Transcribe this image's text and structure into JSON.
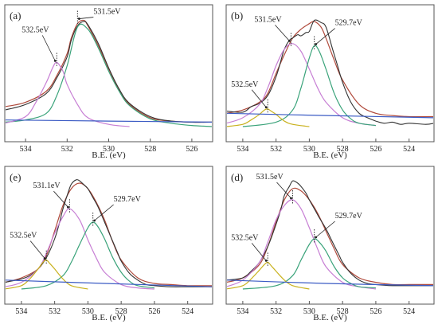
{
  "chart_data": [
    {
      "type": "line",
      "panel_label": "(a)",
      "xlabel": "B.E. (eV)",
      "xlim": [
        535,
        525
      ],
      "xticks": [
        534,
        532,
        530,
        528,
        526
      ],
      "ylim": [
        0,
        100
      ],
      "series": [
        {
          "color": "#b04a3c",
          "x": [
            535,
            534,
            533,
            532.5,
            532,
            531.8,
            531.5,
            531.2,
            531,
            530.5,
            530,
            529.5,
            529,
            528,
            527,
            526,
            525
          ],
          "y": [
            18,
            22,
            32,
            46,
            66,
            80,
            93,
            96,
            91,
            73,
            52,
            33,
            20,
            8,
            5,
            4,
            4
          ]
        },
        {
          "color": "#333333",
          "x": [
            535,
            534,
            533,
            532.5,
            532,
            531.8,
            531.5,
            531.2,
            531,
            530.5,
            530,
            529.5,
            529,
            528,
            527,
            526,
            525
          ],
          "y": [
            15,
            20,
            30,
            44,
            63,
            78,
            91,
            95,
            92,
            75,
            53,
            34,
            21,
            9,
            5,
            4,
            4
          ]
        },
        {
          "color": "#3aa37a",
          "x": [
            535,
            534,
            533,
            532.5,
            532,
            531.5,
            531,
            530.5,
            530,
            529.5,
            529,
            528,
            527,
            526,
            525
          ],
          "y": [
            4,
            6,
            12,
            28,
            55,
            90,
            88,
            71,
            50,
            32,
            19,
            7,
            3,
            1,
            0
          ]
        },
        {
          "color": "#c77fd4",
          "x": [
            535,
            534,
            533.5,
            533,
            532.7,
            532.5,
            532.2,
            532,
            531.5,
            531,
            530,
            529
          ],
          "y": [
            3,
            9,
            22,
            40,
            53,
            58,
            50,
            38,
            20,
            8,
            2,
            0
          ]
        },
        {
          "color": "#3b5bc4",
          "x": [
            535,
            530,
            525
          ],
          "y": [
            6,
            5,
            4
          ]
        }
      ],
      "annotations": [
        {
          "text": "531.5eV",
          "x": 531.5,
          "y": 96
        },
        {
          "text": "532.5eV",
          "x": 532.5,
          "y": 58
        }
      ]
    },
    {
      "type": "line",
      "panel_label": "(b)",
      "xlabel": "B.E. (eV)",
      "xlim": [
        535,
        522.5
      ],
      "xticks": [
        534,
        532,
        530,
        528,
        526,
        524
      ],
      "ylim": [
        0,
        100
      ],
      "series": [
        {
          "color": "#b04a3c",
          "x": [
            535,
            534,
            533,
            532.5,
            532,
            531.5,
            531,
            530.5,
            530,
            529.7,
            529.3,
            529,
            528.5,
            528,
            527,
            526,
            525,
            524,
            522.5
          ],
          "y": [
            12,
            15,
            22,
            30,
            48,
            65,
            80,
            88,
            93,
            95,
            90,
            80,
            60,
            42,
            20,
            12,
            10,
            9,
            9
          ]
        },
        {
          "color": "#333333",
          "x": [
            535,
            534,
            533.5,
            533,
            532.5,
            532,
            531.7,
            531.5,
            531.2,
            531,
            530.7,
            530.5,
            530.2,
            530,
            529.7,
            529.3,
            529,
            528.6,
            528.3,
            528,
            527.5,
            527,
            526.5,
            526,
            525.5,
            525,
            524.5,
            524,
            523,
            522.5
          ],
          "y": [
            14,
            13,
            18,
            21,
            28,
            45,
            60,
            70,
            78,
            80,
            83,
            82,
            85,
            86,
            96,
            94,
            90,
            70,
            55,
            40,
            22,
            12,
            8,
            5,
            3,
            4,
            2,
            3,
            2,
            3
          ]
        },
        {
          "color": "#c77fd4",
          "x": [
            535,
            534,
            533,
            532.5,
            532,
            531.5,
            531,
            530.5,
            530,
            529.5,
            529,
            528,
            527,
            526
          ],
          "y": [
            3,
            8,
            20,
            35,
            55,
            70,
            75,
            68,
            52,
            35,
            22,
            8,
            3,
            1
          ]
        },
        {
          "color": "#3aa37a",
          "x": [
            534,
            532,
            531,
            530.5,
            530,
            529.7,
            529.4,
            529,
            528.5,
            528,
            527.5,
            527,
            526
          ],
          "y": [
            0,
            4,
            15,
            35,
            62,
            73,
            68,
            52,
            30,
            15,
            7,
            3,
            1
          ]
        },
        {
          "color": "#c9b21f",
          "x": [
            535,
            534,
            533.5,
            533,
            532.7,
            532.5,
            532.3,
            532,
            531.5,
            531,
            530
          ],
          "y": [
            0,
            2,
            6,
            11,
            15,
            16,
            14,
            11,
            5,
            2,
            0
          ]
        },
        {
          "color": "#3b5bc4",
          "x": [
            535,
            529,
            522.5
          ],
          "y": [
            12,
            10,
            8
          ]
        }
      ],
      "annotations": [
        {
          "text": "531.5eV",
          "x": 531.1,
          "y": 76
        },
        {
          "text": "529.7eV",
          "x": 529.7,
          "y": 73
        },
        {
          "text": "532.5eV",
          "x": 532.5,
          "y": 16
        }
      ]
    },
    {
      "type": "line",
      "panel_label": "(e)",
      "xlabel": "B.E. (eV)",
      "xlim": [
        535,
        522.5
      ],
      "xticks": [
        534,
        532,
        530,
        528,
        526,
        524
      ],
      "ylim": [
        0,
        100
      ],
      "series": [
        {
          "color": "#b04a3c",
          "x": [
            535,
            534,
            533,
            532.5,
            532,
            531.5,
            531,
            530.5,
            530,
            529.5,
            529,
            528.5,
            528,
            527,
            526,
            525,
            524,
            522.5
          ],
          "y": [
            6,
            10,
            18,
            30,
            52,
            75,
            90,
            95,
            90,
            78,
            62,
            42,
            26,
            10,
            5,
            4,
            3,
            3
          ]
        },
        {
          "color": "#333333",
          "x": [
            535,
            534,
            533.5,
            533,
            532.5,
            532,
            531.7,
            531.5,
            531.2,
            531,
            530.7,
            530.5,
            530.2,
            530,
            529.7,
            529.4,
            529,
            528.6,
            528.2,
            528,
            527.5,
            527,
            526.5,
            526,
            525,
            524,
            522.5
          ],
          "y": [
            6,
            9,
            12,
            18,
            28,
            45,
            60,
            72,
            86,
            94,
            98,
            97,
            93,
            90,
            82,
            74,
            60,
            46,
            32,
            25,
            14,
            8,
            4,
            3,
            2,
            2,
            2
          ]
        },
        {
          "color": "#c77fd4",
          "x": [
            535,
            534,
            533,
            532.5,
            532,
            531.5,
            531.1,
            530.5,
            530,
            529.5,
            529,
            528,
            527,
            526
          ],
          "y": [
            2,
            6,
            18,
            32,
            50,
            65,
            72,
            62,
            44,
            28,
            15,
            4,
            1,
            0
          ]
        },
        {
          "color": "#3aa37a",
          "x": [
            534,
            532.5,
            531.5,
            531,
            530.5,
            530,
            529.7,
            529.4,
            529,
            528.5,
            528,
            527.5,
            527,
            526
          ],
          "y": [
            0,
            3,
            12,
            24,
            40,
            55,
            60,
            56,
            45,
            28,
            15,
            7,
            3,
            1
          ]
        },
        {
          "color": "#c9b21f",
          "x": [
            535,
            534,
            533.5,
            533,
            532.7,
            532.5,
            532.3,
            532,
            531.5,
            531,
            530
          ],
          "y": [
            0,
            3,
            9,
            18,
            24,
            26,
            23,
            18,
            9,
            3,
            0
          ]
        },
        {
          "color": "#3b5bc4",
          "x": [
            535,
            529,
            522.5
          ],
          "y": [
            8,
            5,
            2
          ]
        }
      ],
      "annotations": [
        {
          "text": "531.1eV",
          "x": 531.1,
          "y": 72
        },
        {
          "text": "529.7eV",
          "x": 529.7,
          "y": 60
        },
        {
          "text": "532.5eV",
          "x": 532.5,
          "y": 26
        }
      ]
    },
    {
      "type": "line",
      "panel_label": "(d)",
      "xlabel": "B.E. (eV)",
      "xlim": [
        535,
        522.5
      ],
      "xticks": [
        534,
        532,
        530,
        528,
        526,
        524
      ],
      "ylim": [
        0,
        100
      ],
      "series": [
        {
          "color": "#b04a3c",
          "x": [
            535,
            534,
            533,
            532.5,
            532,
            531.5,
            531,
            530.5,
            530,
            529.5,
            529,
            528.5,
            528,
            527,
            526,
            525,
            524,
            522.5
          ],
          "y": [
            6,
            10,
            22,
            38,
            60,
            80,
            90,
            88,
            80,
            68,
            52,
            36,
            22,
            10,
            6,
            4,
            4,
            4
          ]
        },
        {
          "color": "#333333",
          "x": [
            535,
            534,
            533.5,
            533,
            532.5,
            532,
            531.7,
            531.5,
            531.2,
            531,
            530.7,
            530.5,
            530.2,
            530,
            529.7,
            529.4,
            529,
            528.6,
            528.2,
            528,
            527.5,
            527,
            526.5,
            526,
            525,
            524,
            522.5
          ],
          "y": [
            8,
            10,
            16,
            24,
            38,
            58,
            72,
            84,
            92,
            97,
            95,
            92,
            86,
            80,
            72,
            64,
            54,
            42,
            30,
            24,
            14,
            8,
            5,
            4,
            3,
            3,
            3
          ]
        },
        {
          "color": "#c77fd4",
          "x": [
            535,
            534,
            533,
            532.5,
            532,
            531.5,
            531,
            530.5,
            530,
            529.5,
            529,
            528,
            527,
            526
          ],
          "y": [
            2,
            8,
            24,
            42,
            62,
            75,
            80,
            72,
            55,
            36,
            20,
            6,
            2,
            0
          ]
        },
        {
          "color": "#3aa37a",
          "x": [
            534,
            532,
            531,
            530.5,
            530,
            529.7,
            529.4,
            529,
            528.5,
            528,
            527.5,
            527,
            526
          ],
          "y": [
            0,
            3,
            12,
            26,
            40,
            45,
            42,
            34,
            20,
            10,
            5,
            2,
            1
          ]
        },
        {
          "color": "#c9b21f",
          "x": [
            535,
            534,
            533.5,
            533,
            532.7,
            532.5,
            532.3,
            532,
            531.5,
            531,
            530
          ],
          "y": [
            0,
            3,
            9,
            17,
            22,
            24,
            21,
            16,
            8,
            3,
            0
          ]
        },
        {
          "color": "#3b5bc4",
          "x": [
            535,
            529,
            522.5
          ],
          "y": [
            8,
            5,
            3
          ]
        }
      ],
      "annotations": [
        {
          "text": "531.5eV",
          "x": 531,
          "y": 80
        },
        {
          "text": "529.7eV",
          "x": 529.7,
          "y": 45
        },
        {
          "text": "532.5eV",
          "x": 532.5,
          "y": 24
        }
      ]
    }
  ]
}
